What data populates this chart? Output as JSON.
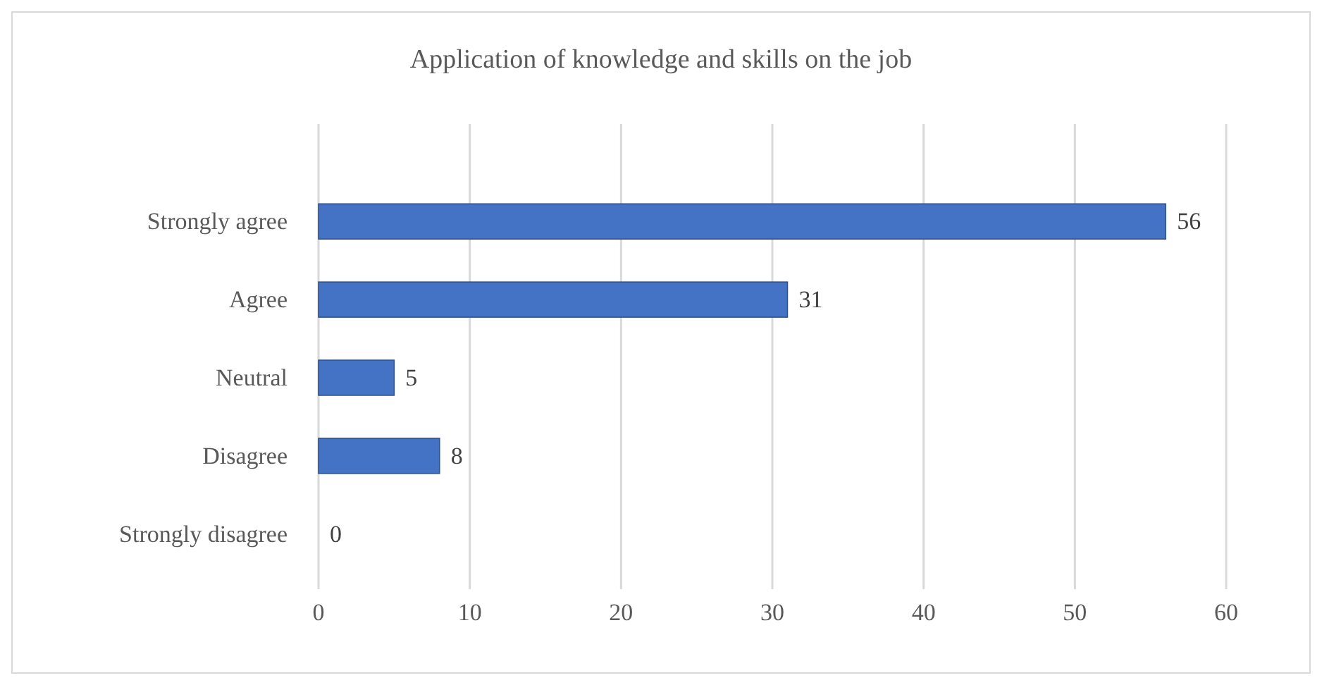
{
  "chart_data": {
    "type": "bar",
    "orientation": "horizontal",
    "title": "Application of knowledge and skills on the job",
    "categories": [
      "Strongly agree",
      "Agree",
      "Neutral",
      "Disagree",
      "Strongly disagree"
    ],
    "values": [
      56,
      31,
      5,
      8,
      0
    ],
    "color": "#4472c4",
    "xlim": [
      0,
      60
    ],
    "xticks": [
      0,
      10,
      20,
      30,
      40,
      50,
      60
    ],
    "grid": "x",
    "data_labels": true
  }
}
